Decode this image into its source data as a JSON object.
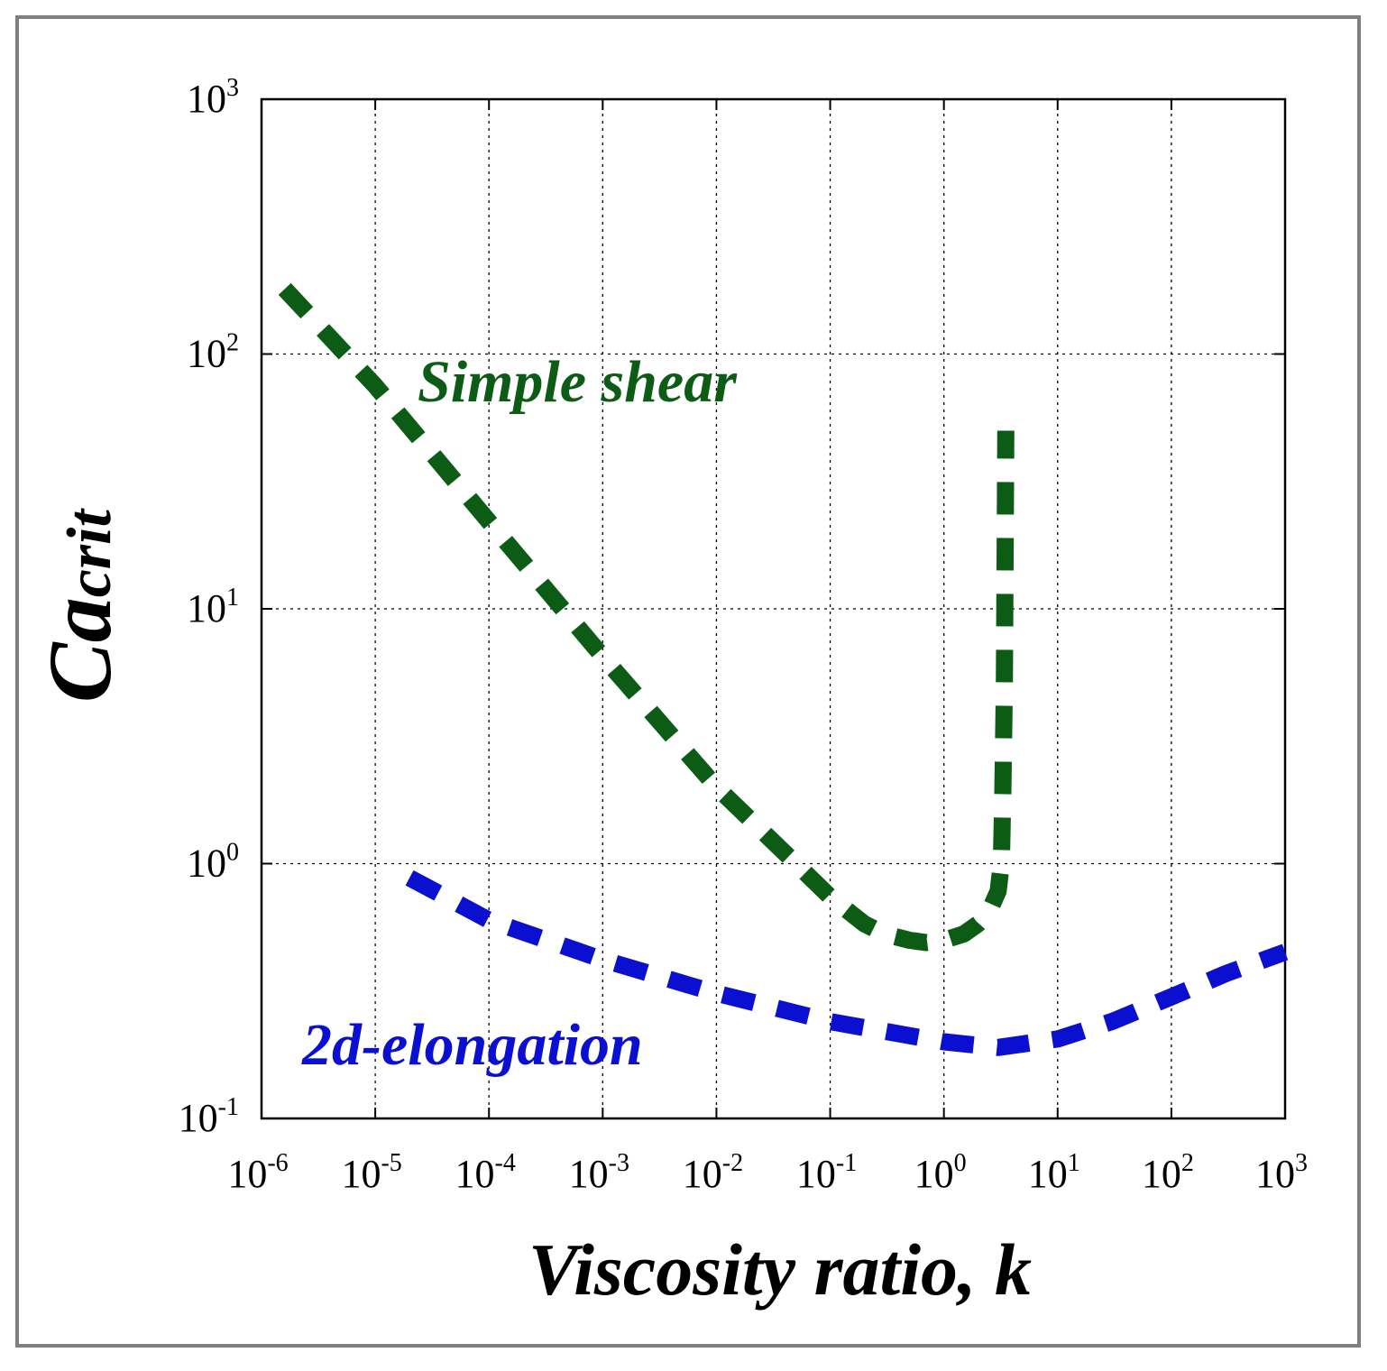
{
  "chart_data": {
    "type": "line",
    "xscale": "log",
    "yscale": "log",
    "xlim": [
      1e-06,
      1000.0
    ],
    "ylim": [
      0.1,
      1000.0
    ],
    "grid": true,
    "xlabel": "Viscosity ratio, k",
    "ylabel": {
      "main": "Ca",
      "sub": "crit"
    },
    "x_ticks": [
      {
        "base": "10",
        "exp": "-6",
        "value": 1e-06
      },
      {
        "base": "10",
        "exp": "-5",
        "value": 1e-05
      },
      {
        "base": "10",
        "exp": "-4",
        "value": 0.0001
      },
      {
        "base": "10",
        "exp": "-3",
        "value": 0.001
      },
      {
        "base": "10",
        "exp": "-2",
        "value": 0.01
      },
      {
        "base": "10",
        "exp": "-1",
        "value": 0.1
      },
      {
        "base": "10",
        "exp": "0",
        "value": 1
      },
      {
        "base": "10",
        "exp": "1",
        "value": 10
      },
      {
        "base": "10",
        "exp": "2",
        "value": 100
      },
      {
        "base": "10",
        "exp": "3",
        "value": 1000
      }
    ],
    "y_ticks": [
      {
        "base": "10",
        "exp": "-1",
        "value": 0.1
      },
      {
        "base": "10",
        "exp": "0",
        "value": 1
      },
      {
        "base": "10",
        "exp": "1",
        "value": 10
      },
      {
        "base": "10",
        "exp": "2",
        "value": 100
      },
      {
        "base": "10",
        "exp": "3",
        "value": 1000
      }
    ],
    "series": [
      {
        "name": "Simple shear",
        "color": "#0d5c16",
        "x": [
          1.6e-06,
          1e-05,
          0.0001,
          0.001,
          0.01,
          0.05,
          0.1,
          0.2,
          0.3,
          0.5,
          0.7,
          1.0,
          1.5,
          2.0,
          2.5,
          3.0,
          3.2,
          3.3,
          3.4,
          3.45,
          3.5
        ],
        "values": [
          180,
          75,
          22,
          6.5,
          2.0,
          1.0,
          0.74,
          0.58,
          0.53,
          0.5,
          0.49,
          0.5,
          0.53,
          0.58,
          0.65,
          0.78,
          1.0,
          2.0,
          5.0,
          15,
          50
        ]
      },
      {
        "name": "2d-elongation",
        "color": "#0a0fd0",
        "x": [
          2e-05,
          0.0001,
          0.001,
          0.01,
          0.1,
          1.0,
          3.0,
          10,
          30,
          100,
          300,
          1000
        ],
        "values": [
          0.88,
          0.6,
          0.42,
          0.31,
          0.24,
          0.2,
          0.19,
          0.205,
          0.24,
          0.3,
          0.37,
          0.45
        ]
      }
    ]
  }
}
